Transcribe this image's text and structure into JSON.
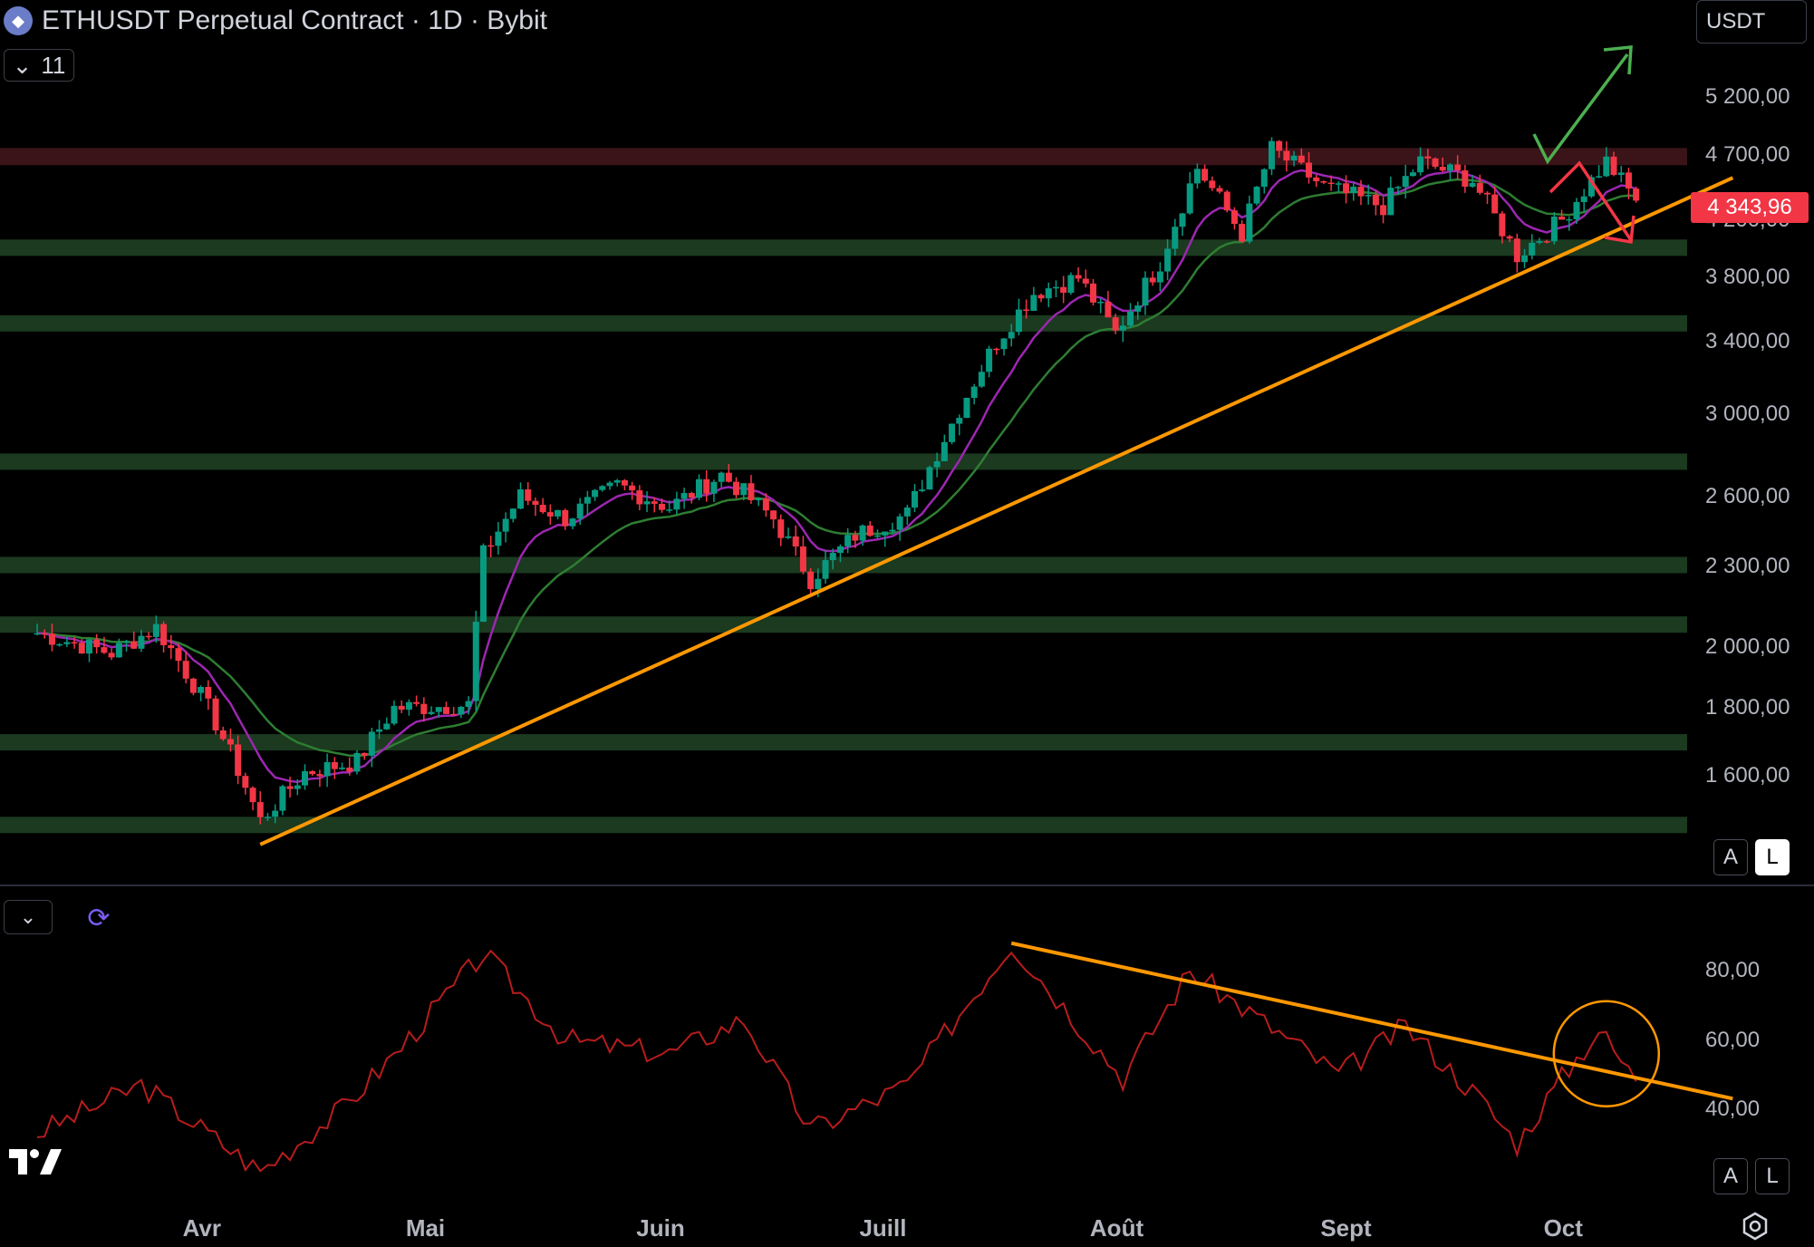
{
  "header": {
    "title": "ETHUSDT Perpetual Contract · 1D · Bybit",
    "logo_icon": "ethereum-coin-icon",
    "indicator_count": "11",
    "currency": "USDT"
  },
  "price_axis": {
    "last_price": "4 343,96",
    "labels": [
      "5 200,00",
      "4 700,00",
      "4 200,00",
      "3 800,00",
      "3 400,00",
      "3 000,00",
      "2 600,00",
      "2 300,00",
      "2 000,00",
      "1 800,00",
      "1 600,00"
    ],
    "auto_label": "A",
    "log_label": "L"
  },
  "rsi_axis": {
    "labels": [
      "80,00",
      "60,00",
      "40,00"
    ],
    "auto_label": "A",
    "log_label": "L"
  },
  "time_axis": {
    "labels": [
      "Avr",
      "Mai",
      "Juin",
      "Juill",
      "Août",
      "Sept",
      "Oct"
    ]
  },
  "colors": {
    "background": "#000000",
    "up_candle": "#089981",
    "down_candle": "#f23645",
    "zone_green": "#1b3a1f",
    "zone_red": "#3a1418",
    "trendline": "#ff9800",
    "ema_fast": "#9c27b0",
    "ema_slow": "#2e7d32",
    "rsi_line": "#b71c1c",
    "arrow_up": "#4caf50",
    "arrow_down": "#f23645",
    "price_tag": "#f23645"
  },
  "chart_data": {
    "type": "candlestick",
    "symbol": "ETHUSDT",
    "timeframe": "1D",
    "exchange": "Bybit",
    "last_price": 4343.96,
    "price_range": [
      1380,
      5600
    ],
    "resistance_zone": [
      4620,
      4760
    ],
    "support_zones": [
      [
        4010,
        4060
      ],
      [
        3510,
        3560
      ],
      [
        2760,
        2800
      ],
      [
        2300,
        2340
      ],
      [
        2080,
        2110
      ],
      [
        1690,
        1720
      ],
      [
        1460,
        1490
      ]
    ],
    "price_path": [
      {
        "date": "2025-03-10",
        "close": 2050
      },
      {
        "date": "2025-03-20",
        "close": 1980
      },
      {
        "date": "2025-03-26",
        "close": 2070
      },
      {
        "date": "2025-04-02",
        "close": 1800
      },
      {
        "date": "2025-04-09",
        "close": 1480
      },
      {
        "date": "2025-04-15",
        "close": 1610
      },
      {
        "date": "2025-04-22",
        "close": 1640
      },
      {
        "date": "2025-04-27",
        "close": 1800
      },
      {
        "date": "2025-05-07",
        "close": 1810
      },
      {
        "date": "2025-05-09",
        "close": 2350
      },
      {
        "date": "2025-05-14",
        "close": 2600
      },
      {
        "date": "2025-05-20",
        "close": 2500
      },
      {
        "date": "2025-05-27",
        "close": 2650
      },
      {
        "date": "2025-06-03",
        "close": 2550
      },
      {
        "date": "2025-06-10",
        "close": 2700
      },
      {
        "date": "2025-06-17",
        "close": 2500
      },
      {
        "date": "2025-06-22",
        "close": 2250
      },
      {
        "date": "2025-06-28",
        "close": 2430
      },
      {
        "date": "2025-07-05",
        "close": 2520
      },
      {
        "date": "2025-07-11",
        "close": 2950
      },
      {
        "date": "2025-07-17",
        "close": 3400
      },
      {
        "date": "2025-07-22",
        "close": 3700
      },
      {
        "date": "2025-07-28",
        "close": 3800
      },
      {
        "date": "2025-08-02",
        "close": 3450
      },
      {
        "date": "2025-08-08",
        "close": 3900
      },
      {
        "date": "2025-08-13",
        "close": 4600
      },
      {
        "date": "2025-08-19",
        "close": 4100
      },
      {
        "date": "2025-08-23",
        "close": 4750
      },
      {
        "date": "2025-08-30",
        "close": 4450
      },
      {
        "date": "2025-09-07",
        "close": 4300
      },
      {
        "date": "2025-09-12",
        "close": 4650
      },
      {
        "date": "2025-09-19",
        "close": 4500
      },
      {
        "date": "2025-09-25",
        "close": 3950
      },
      {
        "date": "2025-10-01",
        "close": 4200
      },
      {
        "date": "2025-10-07",
        "close": 4650
      },
      {
        "date": "2025-10-11",
        "close": 4343.96
      }
    ],
    "ascending_trendline": [
      {
        "date": "2025-04-09",
        "price": 1420
      },
      {
        "date": "2025-10-24",
        "price": 4520
      }
    ],
    "scenarios": [
      "breakout above resistance",
      "breakdown below trendline"
    ],
    "rsi": {
      "range": [
        20,
        100
      ],
      "ticks": [
        80,
        60,
        40
      ],
      "path": [
        {
          "date": "2025-03-10",
          "value": 33
        },
        {
          "date": "2025-03-24",
          "value": 47
        },
        {
          "date": "2025-04-09",
          "value": 22
        },
        {
          "date": "2025-04-20",
          "value": 40
        },
        {
          "date": "2025-04-28",
          "value": 58
        },
        {
          "date": "2025-05-09",
          "value": 85
        },
        {
          "date": "2025-05-20",
          "value": 60
        },
        {
          "date": "2025-06-03",
          "value": 56
        },
        {
          "date": "2025-06-13",
          "value": 66
        },
        {
          "date": "2025-06-22",
          "value": 34
        },
        {
          "date": "2025-07-05",
          "value": 47
        },
        {
          "date": "2025-07-19",
          "value": 88
        },
        {
          "date": "2025-08-03",
          "value": 49
        },
        {
          "date": "2025-08-12",
          "value": 80
        },
        {
          "date": "2025-08-22",
          "value": 65
        },
        {
          "date": "2025-09-01",
          "value": 50
        },
        {
          "date": "2025-09-10",
          "value": 64
        },
        {
          "date": "2025-09-20",
          "value": 43
        },
        {
          "date": "2025-09-25",
          "value": 30
        },
        {
          "date": "2025-10-01",
          "value": 49
        },
        {
          "date": "2025-10-06",
          "value": 63
        },
        {
          "date": "2025-10-11",
          "value": 48
        }
      ],
      "descending_trendline": [
        {
          "date": "2025-07-19",
          "value": 88
        },
        {
          "date": "2025-10-24",
          "value": 43
        }
      ],
      "highlight_date": "2025-10-07"
    }
  }
}
